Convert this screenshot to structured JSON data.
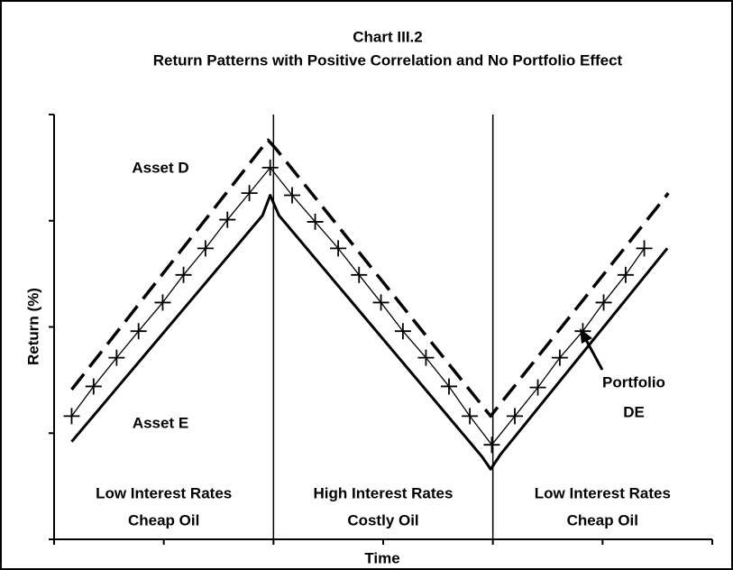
{
  "chart_data": {
    "type": "line",
    "title": "Chart III.2",
    "subtitle": "Return Patterns with Positive Correlation and No Portfolio Effect",
    "x_label": "Time",
    "y_label": "Return (%)",
    "xlim": [
      0,
      6
    ],
    "ylim": [
      0,
      4
    ],
    "xticks": [
      0,
      1,
      2,
      3,
      4,
      5,
      6
    ],
    "yticks": [
      0,
      1,
      2,
      3,
      4
    ],
    "regions": [
      {
        "range": [
          0,
          2
        ],
        "lines": [
          "Low Interest Rates",
          "Cheap Oil"
        ]
      },
      {
        "range": [
          2,
          4
        ],
        "lines": [
          "High Interest Rates",
          "Costly Oil"
        ]
      },
      {
        "range": [
          4,
          6
        ],
        "lines": [
          "Low Interest Rates",
          "Cheap Oil"
        ]
      }
    ],
    "series": [
      {
        "name": "Asset D",
        "color": "#000000",
        "style": "dashed",
        "x": [
          0.16,
          1.95,
          2.02,
          3.98,
          4.04,
          5.6
        ],
        "values": [
          1.41,
          3.76,
          3.68,
          1.16,
          1.24,
          3.26
        ]
      },
      {
        "name": "Asset E",
        "color": "#000000",
        "style": "solid",
        "x": [
          0.16,
          1.9,
          1.97,
          2.05,
          3.9,
          3.98,
          4.07,
          5.59
        ],
        "values": [
          0.92,
          3.05,
          3.24,
          3.05,
          0.78,
          0.66,
          0.8,
          2.74
        ]
      },
      {
        "name_lines": [
          "Portfolio",
          "DE"
        ],
        "color": "#000000",
        "style": "markers",
        "x": [
          0.16,
          0.36,
          0.57,
          0.77,
          0.99,
          1.18,
          1.38,
          1.58,
          1.78,
          1.97,
          2.17,
          2.38,
          2.59,
          2.78,
          2.98,
          3.18,
          3.39,
          3.6,
          3.79,
          3.99,
          4.2,
          4.41,
          4.61,
          4.82,
          5.01,
          5.21,
          5.38
        ],
        "values": [
          1.16,
          1.44,
          1.71,
          1.96,
          2.23,
          2.49,
          2.74,
          3.01,
          3.26,
          3.5,
          3.24,
          2.99,
          2.74,
          2.49,
          2.23,
          1.96,
          1.71,
          1.44,
          1.16,
          0.89,
          1.16,
          1.43,
          1.71,
          1.96,
          2.23,
          2.49,
          2.74
        ]
      }
    ]
  }
}
